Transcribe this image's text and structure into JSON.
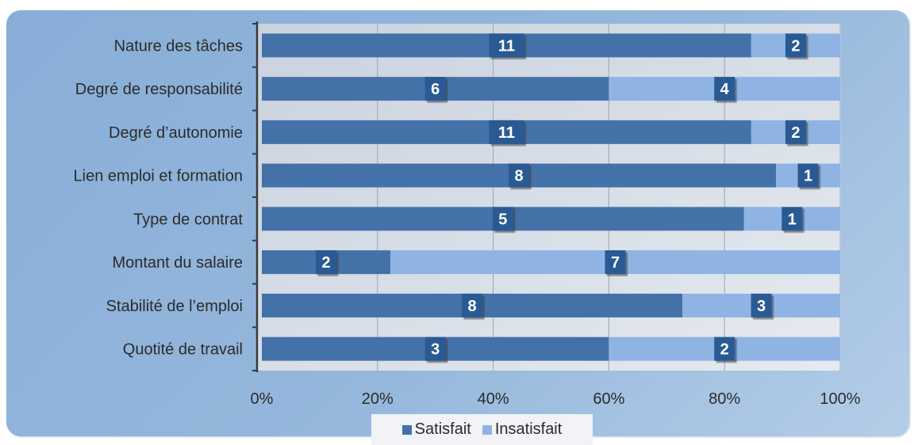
{
  "chart_data": {
    "type": "bar",
    "orientation": "horizontal",
    "stacked": "percent",
    "title": "",
    "xlabel": "",
    "ylabel": "",
    "xlim": [
      0,
      100
    ],
    "x_ticks": [
      "0%",
      "20%",
      "40%",
      "60%",
      "80%",
      "100%"
    ],
    "grid": "vertical",
    "legend_position": "bottom",
    "categories": [
      "Nature des tâches",
      "Degré de responsabilité",
      "Degré d’autonomie",
      "Lien emploi et formation",
      "Type de contrat",
      "Montant du salaire",
      "Stabilité de l’emploi",
      "Quotité de travail"
    ],
    "series": [
      {
        "name": "Satisfait",
        "color": "#4472a8",
        "values": [
          11,
          6,
          11,
          8,
          5,
          2,
          8,
          3
        ]
      },
      {
        "name": "Insatisfait",
        "color": "#8fb4e3",
        "values": [
          2,
          4,
          2,
          1,
          1,
          7,
          3,
          2
        ]
      }
    ],
    "colors": {
      "frame": "#8cb0d8",
      "plot_area": "#d7dde6",
      "label_box": "#2a5a94",
      "label_text": "#ffffff",
      "axis_text": "#2b2b2b",
      "legend_bg": "#f1f3f6"
    }
  }
}
